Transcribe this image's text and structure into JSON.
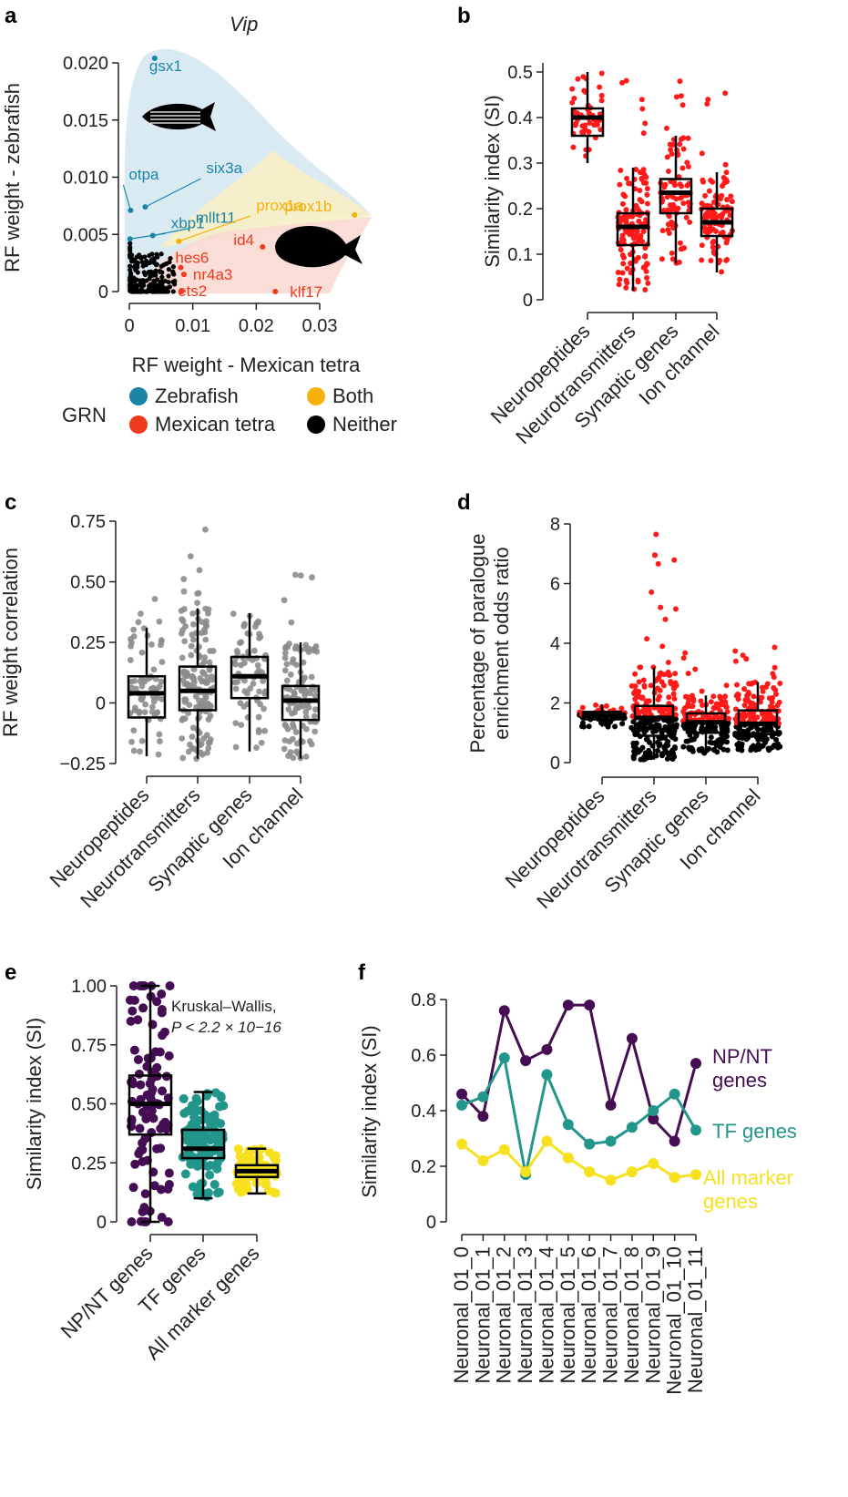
{
  "colors": {
    "zebrafish": "#1a85a8",
    "mexican_tetra": "#ee3a1e",
    "both": "#f5b10a",
    "neither": "#000000",
    "red": "#ff1a1a",
    "grey": "#8c8c8c",
    "np_nt": "#450d54",
    "tf": "#22968b",
    "all_marker": "#f7e11f"
  },
  "chart_data": [
    {
      "panel": "a",
      "type": "scatter",
      "title": "Vip",
      "xlabel": "RF weight - Mexican tetra",
      "ylabel": "RF weight - zebrafish",
      "xlim": [
        0,
        0.036
      ],
      "ylim": [
        0,
        0.021
      ],
      "xticks": [
        "0",
        "0.01",
        "0.02",
        "0.03"
      ],
      "yticks": [
        "0",
        "0.005",
        "0.010",
        "0.015",
        "0.020"
      ],
      "legend_title": "GRN",
      "legend": [
        {
          "label": "Zebrafish",
          "key": "zebrafish"
        },
        {
          "label": "Both",
          "key": "both"
        },
        {
          "label": "Mexican tetra",
          "key": "mexican_tetra"
        },
        {
          "label": "Neither",
          "key": "neither"
        }
      ],
      "labeled_points": [
        {
          "label": "gsx1",
          "x": 0.004,
          "y": 0.0204,
          "group": "zebrafish"
        },
        {
          "label": "otpa",
          "x": 0.0002,
          "y": 0.0071,
          "group": "zebrafish"
        },
        {
          "label": "six3a",
          "x": 0.0025,
          "y": 0.0074,
          "group": "zebrafish"
        },
        {
          "label": "mllt11",
          "x": 0.0037,
          "y": 0.0049,
          "group": "zebrafish"
        },
        {
          "label": "xbp1",
          "x": 0.0001,
          "y": 0.0046,
          "group": "zebrafish"
        },
        {
          "label": "prox1a",
          "x": 0.0078,
          "y": 0.0044,
          "group": "both"
        },
        {
          "label": "prox1b",
          "x": 0.0355,
          "y": 0.0067,
          "group": "both"
        },
        {
          "label": "id4",
          "x": 0.021,
          "y": 0.0039,
          "group": "mexican_tetra"
        },
        {
          "label": "hes6",
          "x": 0.0081,
          "y": 0.0021,
          "group": "mexican_tetra"
        },
        {
          "label": "nr4a3",
          "x": 0.0086,
          "y": 0.0015,
          "group": "mexican_tetra"
        },
        {
          "label": "ets2",
          "x": 0.0082,
          "y": 0.0,
          "group": "mexican_tetra"
        },
        {
          "label": "klf17",
          "x": 0.023,
          "y": 0.0,
          "group": "mexican_tetra"
        }
      ]
    },
    {
      "panel": "b",
      "type": "box",
      "ylabel": "Similarity index (SI)",
      "ylim": [
        0,
        0.52
      ],
      "yticks": [
        "0",
        "0.1",
        "0.2",
        "0.3",
        "0.4",
        "0.5"
      ],
      "categories": [
        "Neuropeptides",
        "Neurotransmitters",
        "Synaptic genes",
        "Ion channel"
      ],
      "boxes": [
        {
          "q1": 0.36,
          "median": 0.4,
          "q3": 0.42,
          "whisker_low": 0.3,
          "whisker_high": 0.5
        },
        {
          "q1": 0.12,
          "median": 0.16,
          "q3": 0.19,
          "whisker_low": 0.02,
          "whisker_high": 0.29
        },
        {
          "q1": 0.19,
          "median": 0.235,
          "q3": 0.265,
          "whisker_low": 0.08,
          "whisker_high": 0.36
        },
        {
          "q1": 0.14,
          "median": 0.17,
          "q3": 0.2,
          "whisker_low": 0.06,
          "whisker_high": 0.28
        }
      ]
    },
    {
      "panel": "c",
      "type": "box",
      "ylabel": "RF weight correlation",
      "ylim": [
        -0.25,
        0.75
      ],
      "yticks": [
        "−0.25",
        "0",
        "0.25",
        "0.50",
        "0.75"
      ],
      "categories": [
        "Neuropeptides",
        "Neurotransmitters",
        "Synaptic genes",
        "Ion channel"
      ],
      "boxes": [
        {
          "q1": -0.06,
          "median": 0.04,
          "q3": 0.11,
          "whisker_low": -0.22,
          "whisker_high": 0.31
        },
        {
          "q1": -0.03,
          "median": 0.05,
          "q3": 0.15,
          "whisker_low": -0.23,
          "whisker_high": 0.39
        },
        {
          "q1": 0.02,
          "median": 0.11,
          "q3": 0.19,
          "whisker_low": -0.2,
          "whisker_high": 0.37
        },
        {
          "q1": -0.07,
          "median": 0.01,
          "q3": 0.07,
          "whisker_low": -0.23,
          "whisker_high": 0.25
        }
      ]
    },
    {
      "panel": "d",
      "type": "box",
      "ylabel": "Percentage of paralogue enrichment odds ratio",
      "ylabel_lines": [
        "Percentage of paralogue",
        "enrichment odds ratio"
      ],
      "ylim": [
        0,
        8
      ],
      "yticks": [
        "0",
        "2",
        "4",
        "6",
        "8"
      ],
      "categories": [
        "Neuropeptides",
        "Neurotransmitters",
        "Synaptic genes",
        "Ion channel"
      ],
      "boxes": [
        {
          "q1": 1.45,
          "median": 1.6,
          "q3": 1.7,
          "whisker_low": 1.2,
          "whisker_high": 1.95
        },
        {
          "q1": 0.9,
          "median": 1.5,
          "q3": 1.9,
          "whisker_low": 0.1,
          "whisker_high": 3.2
        },
        {
          "q1": 1.0,
          "median": 1.35,
          "q3": 1.65,
          "whisker_low": 0.3,
          "whisker_high": 2.25
        },
        {
          "q1": 0.95,
          "median": 1.3,
          "q3": 1.75,
          "whisker_low": 0.4,
          "whisker_high": 2.7
        }
      ]
    },
    {
      "panel": "e",
      "type": "box",
      "ylabel": "Similarity index (SI)",
      "ylim": [
        0,
        1
      ],
      "yticks": [
        "0",
        "0.25",
        "0.50",
        "0.75",
        "1.00"
      ],
      "categories": [
        "NP/NT genes",
        "TF genes",
        "All marker genes"
      ],
      "annotation": "Kruskal–Wallis,",
      "annotation_p": "P < 2.2 × 10−16",
      "boxes": [
        {
          "q1": 0.37,
          "median": 0.5,
          "q3": 0.62,
          "whisker_low": 0.0,
          "whisker_high": 1.0
        },
        {
          "q1": 0.27,
          "median": 0.31,
          "q3": 0.39,
          "whisker_low": 0.1,
          "whisker_high": 0.55
        },
        {
          "q1": 0.19,
          "median": 0.215,
          "q3": 0.24,
          "whisker_low": 0.12,
          "whisker_high": 0.31
        }
      ]
    },
    {
      "panel": "f",
      "type": "line",
      "ylabel": "Similarity index (SI)",
      "ylim": [
        0,
        0.85
      ],
      "yticks": [
        "0",
        "0.2",
        "0.4",
        "0.6",
        "0.8"
      ],
      "categories": [
        "Neuronal_01_0",
        "Neuronal_01_1",
        "Neuronal_01_2",
        "Neuronal_01_3",
        "Neuronal_01_4",
        "Neuronal_01_5",
        "Neuronal_01_6",
        "Neuronal_01_7",
        "Neuronal_01_8",
        "Neuronal_01_9",
        "Neuronal_01_10",
        "Neuronal_01_11"
      ],
      "series": [
        {
          "name": "NP/NT genes",
          "color_key": "np_nt",
          "values": [
            0.46,
            0.38,
            0.76,
            0.58,
            0.62,
            0.78,
            0.78,
            0.42,
            0.66,
            0.37,
            0.29,
            0.57
          ]
        },
        {
          "name": "TF genes",
          "color_key": "tf",
          "values": [
            0.42,
            0.45,
            0.59,
            0.17,
            0.53,
            0.35,
            0.28,
            0.29,
            0.34,
            0.4,
            0.46,
            0.33
          ]
        },
        {
          "name": "All marker genes",
          "color_key": "all_marker",
          "values": [
            0.28,
            0.22,
            0.26,
            0.18,
            0.29,
            0.23,
            0.18,
            0.15,
            0.18,
            0.21,
            0.16,
            0.17
          ]
        }
      ]
    }
  ]
}
